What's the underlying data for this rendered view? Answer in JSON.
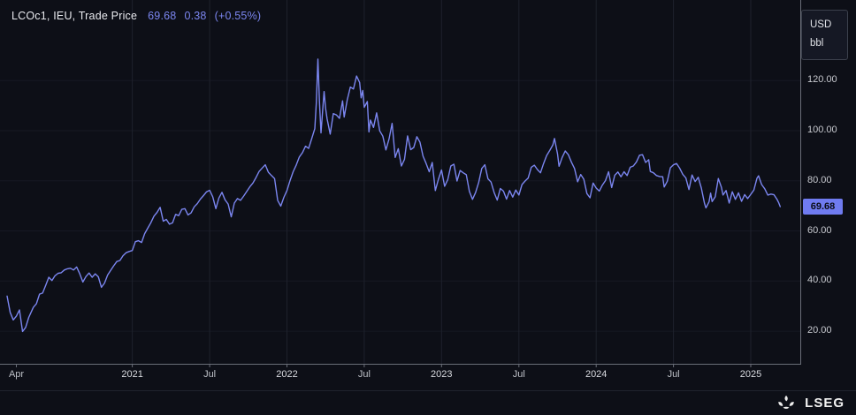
{
  "header": {
    "instrument": "LCOc1, IEU, Trade Price",
    "last": "69.68",
    "net_change": "0.38",
    "pct_change": "(+0.55%)"
  },
  "unit_box": {
    "currency": "USD",
    "unit": "bbl"
  },
  "price_badge": {
    "value": "69.68"
  },
  "footer": {
    "brand": "LSEG"
  },
  "colors": {
    "background": "#0d0f17",
    "line": "#7b86f0",
    "badge_bg": "#6f7bf0",
    "badge_text": "#0a0c15",
    "grid_vertical": "#1e212c",
    "grid_horizontal": "#161923",
    "axis": "#6a6e78",
    "label": "#c7c9cf"
  },
  "chart_data": {
    "type": "line",
    "title": "LCOc1, IEU, Trade Price",
    "xlabel": "",
    "ylabel": "USD/bbl",
    "legend_position": "top-left",
    "grid": true,
    "xlim": [
      2020.19,
      2025.32
    ],
    "ylim": [
      7,
      150
    ],
    "last_price": 69.68,
    "y_ticks": [
      {
        "value": 20,
        "label": "20.00"
      },
      {
        "value": 40,
        "label": "40.00"
      },
      {
        "value": 60,
        "label": "60.00"
      },
      {
        "value": 80,
        "label": "80.00"
      },
      {
        "value": 100,
        "label": "100.00"
      },
      {
        "value": 120,
        "label": "120.00"
      }
    ],
    "x_ticks": [
      {
        "x": 2020.25,
        "label": "Apr",
        "type": "month",
        "grid": false
      },
      {
        "x": 2021.0,
        "label": "2021",
        "type": "year",
        "grid": true
      },
      {
        "x": 2021.5,
        "label": "Jul",
        "type": "month",
        "grid": true
      },
      {
        "x": 2022.0,
        "label": "2022",
        "type": "year",
        "grid": true
      },
      {
        "x": 2022.5,
        "label": "Jul",
        "type": "month",
        "grid": true
      },
      {
        "x": 2023.0,
        "label": "2023",
        "type": "year",
        "grid": true
      },
      {
        "x": 2023.5,
        "label": "Jul",
        "type": "month",
        "grid": true
      },
      {
        "x": 2024.0,
        "label": "2024",
        "type": "year",
        "grid": true
      },
      {
        "x": 2024.5,
        "label": "Jul",
        "type": "month",
        "grid": true
      },
      {
        "x": 2025.0,
        "label": "2025",
        "type": "year",
        "grid": true
      }
    ],
    "series": [
      {
        "name": "LCOc1 Trade Price",
        "points": [
          [
            2020.19,
            34
          ],
          [
            2020.21,
            27.5
          ],
          [
            2020.23,
            24.5
          ],
          [
            2020.25,
            26
          ],
          [
            2020.27,
            28.5
          ],
          [
            2020.29,
            19.9
          ],
          [
            2020.31,
            21.5
          ],
          [
            2020.33,
            25.5
          ],
          [
            2020.36,
            29.5
          ],
          [
            2020.38,
            31
          ],
          [
            2020.4,
            34.8
          ],
          [
            2020.42,
            35.2
          ],
          [
            2020.44,
            38.3
          ],
          [
            2020.46,
            41.5
          ],
          [
            2020.48,
            40.2
          ],
          [
            2020.5,
            42.1
          ],
          [
            2020.52,
            43.1
          ],
          [
            2020.54,
            43.3
          ],
          [
            2020.56,
            44.4
          ],
          [
            2020.58,
            44.9
          ],
          [
            2020.6,
            45.1
          ],
          [
            2020.62,
            44.4
          ],
          [
            2020.64,
            45.6
          ],
          [
            2020.66,
            42.9
          ],
          [
            2020.68,
            39.6
          ],
          [
            2020.7,
            41.8
          ],
          [
            2020.72,
            43.2
          ],
          [
            2020.74,
            41.5
          ],
          [
            2020.76,
            42.9
          ],
          [
            2020.78,
            41.7
          ],
          [
            2020.8,
            37.5
          ],
          [
            2020.82,
            39.2
          ],
          [
            2020.84,
            42.4
          ],
          [
            2020.86,
            44.3
          ],
          [
            2020.88,
            46.1
          ],
          [
            2020.9,
            47.8
          ],
          [
            2020.92,
            48.2
          ],
          [
            2020.94,
            50.1
          ],
          [
            2020.96,
            51.3
          ],
          [
            2020.98,
            51.8
          ],
          [
            2021.0,
            52.2
          ],
          [
            2021.02,
            55.7
          ],
          [
            2021.04,
            56.1
          ],
          [
            2021.06,
            55.4
          ],
          [
            2021.08,
            58.9
          ],
          [
            2021.1,
            61.1
          ],
          [
            2021.12,
            63.3
          ],
          [
            2021.14,
            65.9
          ],
          [
            2021.16,
            67.4
          ],
          [
            2021.18,
            69.4
          ],
          [
            2021.2,
            63.9
          ],
          [
            2021.22,
            64.6
          ],
          [
            2021.24,
            62.7
          ],
          [
            2021.26,
            63.2
          ],
          [
            2021.28,
            66.6
          ],
          [
            2021.3,
            66.1
          ],
          [
            2021.32,
            68.6
          ],
          [
            2021.34,
            68.9
          ],
          [
            2021.36,
            66.4
          ],
          [
            2021.38,
            67.2
          ],
          [
            2021.4,
            69.6
          ],
          [
            2021.42,
            70.9
          ],
          [
            2021.44,
            72.7
          ],
          [
            2021.46,
            74.1
          ],
          [
            2021.48,
            75.6
          ],
          [
            2021.5,
            76.2
          ],
          [
            2021.52,
            73.6
          ],
          [
            2021.54,
            68.9
          ],
          [
            2021.56,
            73.1
          ],
          [
            2021.58,
            75.4
          ],
          [
            2021.6,
            72.4
          ],
          [
            2021.62,
            70.7
          ],
          [
            2021.64,
            65.6
          ],
          [
            2021.66,
            71.1
          ],
          [
            2021.68,
            72.9
          ],
          [
            2021.7,
            72.2
          ],
          [
            2021.72,
            73.9
          ],
          [
            2021.74,
            75.7
          ],
          [
            2021.76,
            77.6
          ],
          [
            2021.78,
            79.1
          ],
          [
            2021.8,
            81.3
          ],
          [
            2021.82,
            83.7
          ],
          [
            2021.84,
            85.1
          ],
          [
            2021.86,
            86.4
          ],
          [
            2021.88,
            83.4
          ],
          [
            2021.9,
            82.1
          ],
          [
            2021.92,
            80.9
          ],
          [
            2021.94,
            72.2
          ],
          [
            2021.96,
            69.9
          ],
          [
            2021.98,
            73.4
          ],
          [
            2022.0,
            76.1
          ],
          [
            2022.02,
            80.1
          ],
          [
            2022.04,
            83.6
          ],
          [
            2022.06,
            86.3
          ],
          [
            2022.08,
            89.5
          ],
          [
            2022.1,
            91.2
          ],
          [
            2022.12,
            93.8
          ],
          [
            2022.14,
            92.9
          ],
          [
            2022.16,
            96.8
          ],
          [
            2022.18,
            100.8
          ],
          [
            2022.19,
            111
          ],
          [
            2022.2,
            128.5
          ],
          [
            2022.21,
            112
          ],
          [
            2022.22,
            99.1
          ],
          [
            2022.23,
            107.2
          ],
          [
            2022.24,
            115.6
          ],
          [
            2022.25,
            108.9
          ],
          [
            2022.26,
            104.7
          ],
          [
            2022.28,
            98.6
          ],
          [
            2022.3,
            106.8
          ],
          [
            2022.32,
            106.3
          ],
          [
            2022.34,
            104.9
          ],
          [
            2022.36,
            111.9
          ],
          [
            2022.37,
            105.4
          ],
          [
            2022.39,
            112.3
          ],
          [
            2022.41,
            117.4
          ],
          [
            2022.43,
            116.6
          ],
          [
            2022.45,
            121.8
          ],
          [
            2022.47,
            119.2
          ],
          [
            2022.48,
            113.1
          ],
          [
            2022.49,
            116
          ],
          [
            2022.5,
            109.3
          ],
          [
            2022.52,
            111.6
          ],
          [
            2022.53,
            99.5
          ],
          [
            2022.54,
            104.2
          ],
          [
            2022.56,
            101.3
          ],
          [
            2022.58,
            107.1
          ],
          [
            2022.6,
            99.9
          ],
          [
            2022.62,
            97.8
          ],
          [
            2022.64,
            92.3
          ],
          [
            2022.66,
            96.6
          ],
          [
            2022.68,
            102.9
          ],
          [
            2022.7,
            89.3
          ],
          [
            2022.72,
            92.8
          ],
          [
            2022.74,
            85.9
          ],
          [
            2022.76,
            88.5
          ],
          [
            2022.78,
            97.9
          ],
          [
            2022.8,
            92.4
          ],
          [
            2022.82,
            93.3
          ],
          [
            2022.84,
            97.6
          ],
          [
            2022.86,
            95.4
          ],
          [
            2022.88,
            89.8
          ],
          [
            2022.9,
            86.9
          ],
          [
            2022.92,
            83.6
          ],
          [
            2022.94,
            87.3
          ],
          [
            2022.96,
            76.1
          ],
          [
            2022.98,
            80.6
          ],
          [
            2023.0,
            84.3
          ],
          [
            2023.02,
            77.8
          ],
          [
            2023.04,
            80.4
          ],
          [
            2023.06,
            85.9
          ],
          [
            2023.08,
            86.6
          ],
          [
            2023.1,
            79.9
          ],
          [
            2023.12,
            84.1
          ],
          [
            2023.14,
            83.2
          ],
          [
            2023.16,
            82.4
          ],
          [
            2023.18,
            75.8
          ],
          [
            2023.2,
            72.6
          ],
          [
            2023.22,
            75.3
          ],
          [
            2023.24,
            79.3
          ],
          [
            2023.26,
            84.9
          ],
          [
            2023.28,
            86.4
          ],
          [
            2023.3,
            80.8
          ],
          [
            2023.32,
            79.5
          ],
          [
            2023.34,
            75.3
          ],
          [
            2023.36,
            72.3
          ],
          [
            2023.38,
            76.9
          ],
          [
            2023.4,
            75.9
          ],
          [
            2023.42,
            72.7
          ],
          [
            2023.44,
            76.1
          ],
          [
            2023.46,
            73.5
          ],
          [
            2023.48,
            76.3
          ],
          [
            2023.5,
            74.3
          ],
          [
            2023.52,
            78.5
          ],
          [
            2023.54,
            79.9
          ],
          [
            2023.56,
            81.1
          ],
          [
            2023.58,
            85.4
          ],
          [
            2023.6,
            86.2
          ],
          [
            2023.62,
            84.5
          ],
          [
            2023.64,
            83.2
          ],
          [
            2023.66,
            86.9
          ],
          [
            2023.68,
            90.1
          ],
          [
            2023.7,
            92.1
          ],
          [
            2023.72,
            94.3
          ],
          [
            2023.73,
            96.9
          ],
          [
            2023.75,
            90.7
          ],
          [
            2023.76,
            85.8
          ],
          [
            2023.78,
            89.3
          ],
          [
            2023.8,
            91.9
          ],
          [
            2023.82,
            90.4
          ],
          [
            2023.84,
            87.4
          ],
          [
            2023.86,
            84.9
          ],
          [
            2023.88,
            79.6
          ],
          [
            2023.9,
            82.5
          ],
          [
            2023.92,
            80.6
          ],
          [
            2023.94,
            74.9
          ],
          [
            2023.96,
            73.2
          ],
          [
            2023.98,
            79.1
          ],
          [
            2024.0,
            77.1
          ],
          [
            2024.02,
            75.9
          ],
          [
            2024.04,
            78.3
          ],
          [
            2024.06,
            80.1
          ],
          [
            2024.08,
            83.6
          ],
          [
            2024.1,
            77.3
          ],
          [
            2024.12,
            82.2
          ],
          [
            2024.14,
            83.5
          ],
          [
            2024.16,
            81.6
          ],
          [
            2024.18,
            83.6
          ],
          [
            2024.2,
            82.1
          ],
          [
            2024.22,
            85.4
          ],
          [
            2024.24,
            85.9
          ],
          [
            2024.26,
            87.5
          ],
          [
            2024.28,
            90.2
          ],
          [
            2024.3,
            90.4
          ],
          [
            2024.32,
            87.3
          ],
          [
            2024.34,
            88.4
          ],
          [
            2024.35,
            83.7
          ],
          [
            2024.37,
            83.2
          ],
          [
            2024.39,
            82.1
          ],
          [
            2024.41,
            81.7
          ],
          [
            2024.43,
            81.6
          ],
          [
            2024.44,
            77.5
          ],
          [
            2024.46,
            79.8
          ],
          [
            2024.48,
            85.2
          ],
          [
            2024.5,
            86.4
          ],
          [
            2024.52,
            86.9
          ],
          [
            2024.54,
            85.0
          ],
          [
            2024.56,
            82.6
          ],
          [
            2024.58,
            81.1
          ],
          [
            2024.6,
            76.5
          ],
          [
            2024.62,
            82.3
          ],
          [
            2024.64,
            79.7
          ],
          [
            2024.66,
            81.4
          ],
          [
            2024.68,
            77.1
          ],
          [
            2024.7,
            71.1
          ],
          [
            2024.71,
            69.2
          ],
          [
            2024.73,
            71.6
          ],
          [
            2024.74,
            75.1
          ],
          [
            2024.75,
            71.7
          ],
          [
            2024.77,
            73.6
          ],
          [
            2024.79,
            80.9
          ],
          [
            2024.81,
            77.4
          ],
          [
            2024.82,
            74.3
          ],
          [
            2024.84,
            76.1
          ],
          [
            2024.86,
            71.1
          ],
          [
            2024.88,
            75.6
          ],
          [
            2024.9,
            72.6
          ],
          [
            2024.92,
            75.2
          ],
          [
            2024.94,
            71.8
          ],
          [
            2024.96,
            74.5
          ],
          [
            2024.98,
            72.9
          ],
          [
            2025.0,
            74.6
          ],
          [
            2025.02,
            76.3
          ],
          [
            2025.04,
            81.0
          ],
          [
            2025.05,
            82.0
          ],
          [
            2025.07,
            78.5
          ],
          [
            2025.09,
            76.8
          ],
          [
            2025.11,
            74.3
          ],
          [
            2025.13,
            74.7
          ],
          [
            2025.15,
            74.4
          ],
          [
            2025.17,
            72.5
          ],
          [
            2025.18,
            71.3
          ],
          [
            2025.19,
            69.68
          ]
        ]
      }
    ]
  }
}
